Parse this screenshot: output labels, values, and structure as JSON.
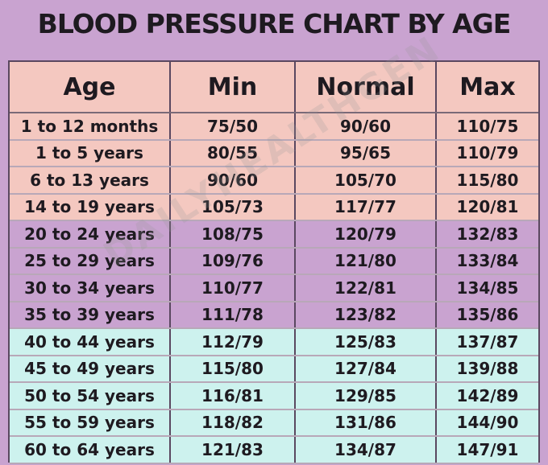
{
  "title": "BLOOD PRESSURE CHART BY AGE",
  "watermark": "DAILYHEALTHGEN",
  "headers": [
    "Age",
    "Min",
    "Normal",
    "Max"
  ],
  "rows": [
    {
      "group": "pink",
      "cells": [
        "1 to 12 months",
        "75/50",
        "90/60",
        "110/75"
      ]
    },
    {
      "group": "pink",
      "cells": [
        "1 to 5 years",
        "80/55",
        "95/65",
        "110/79"
      ]
    },
    {
      "group": "pink",
      "cells": [
        "6 to 13 years",
        "90/60",
        "105/70",
        "115/80"
      ]
    },
    {
      "group": "pink",
      "cells": [
        "14 to 19 years",
        "105/73",
        "117/77",
        "120/81"
      ]
    },
    {
      "group": "purple",
      "cells": [
        "20 to 24 years",
        "108/75",
        "120/79",
        "132/83"
      ]
    },
    {
      "group": "purple",
      "cells": [
        "25 to 29 years",
        "109/76",
        "121/80",
        "133/84"
      ]
    },
    {
      "group": "purple",
      "cells": [
        "30 to 34 years",
        "110/77",
        "122/81",
        "134/85"
      ]
    },
    {
      "group": "purple",
      "cells": [
        "35 to 39 years",
        "111/78",
        "123/82",
        "135/86"
      ]
    },
    {
      "group": "cyan",
      "cells": [
        "40 to 44 years",
        "112/79",
        "125/83",
        "137/87"
      ]
    },
    {
      "group": "cyan",
      "cells": [
        "45 to 49 years",
        "115/80",
        "127/84",
        "139/88"
      ]
    },
    {
      "group": "cyan",
      "cells": [
        "50 to 54 years",
        "116/81",
        "129/85",
        "142/89"
      ]
    },
    {
      "group": "cyan",
      "cells": [
        "55 to 59 years",
        "118/82",
        "131/86",
        "144/90"
      ]
    },
    {
      "group": "cyan",
      "cells": [
        "60 to 64 years",
        "121/83",
        "134/87",
        "147/91"
      ]
    }
  ],
  "colors": {
    "pink": "#f4c8c0",
    "purple": "#c9a3d0",
    "cyan": "#cdf2ee"
  }
}
